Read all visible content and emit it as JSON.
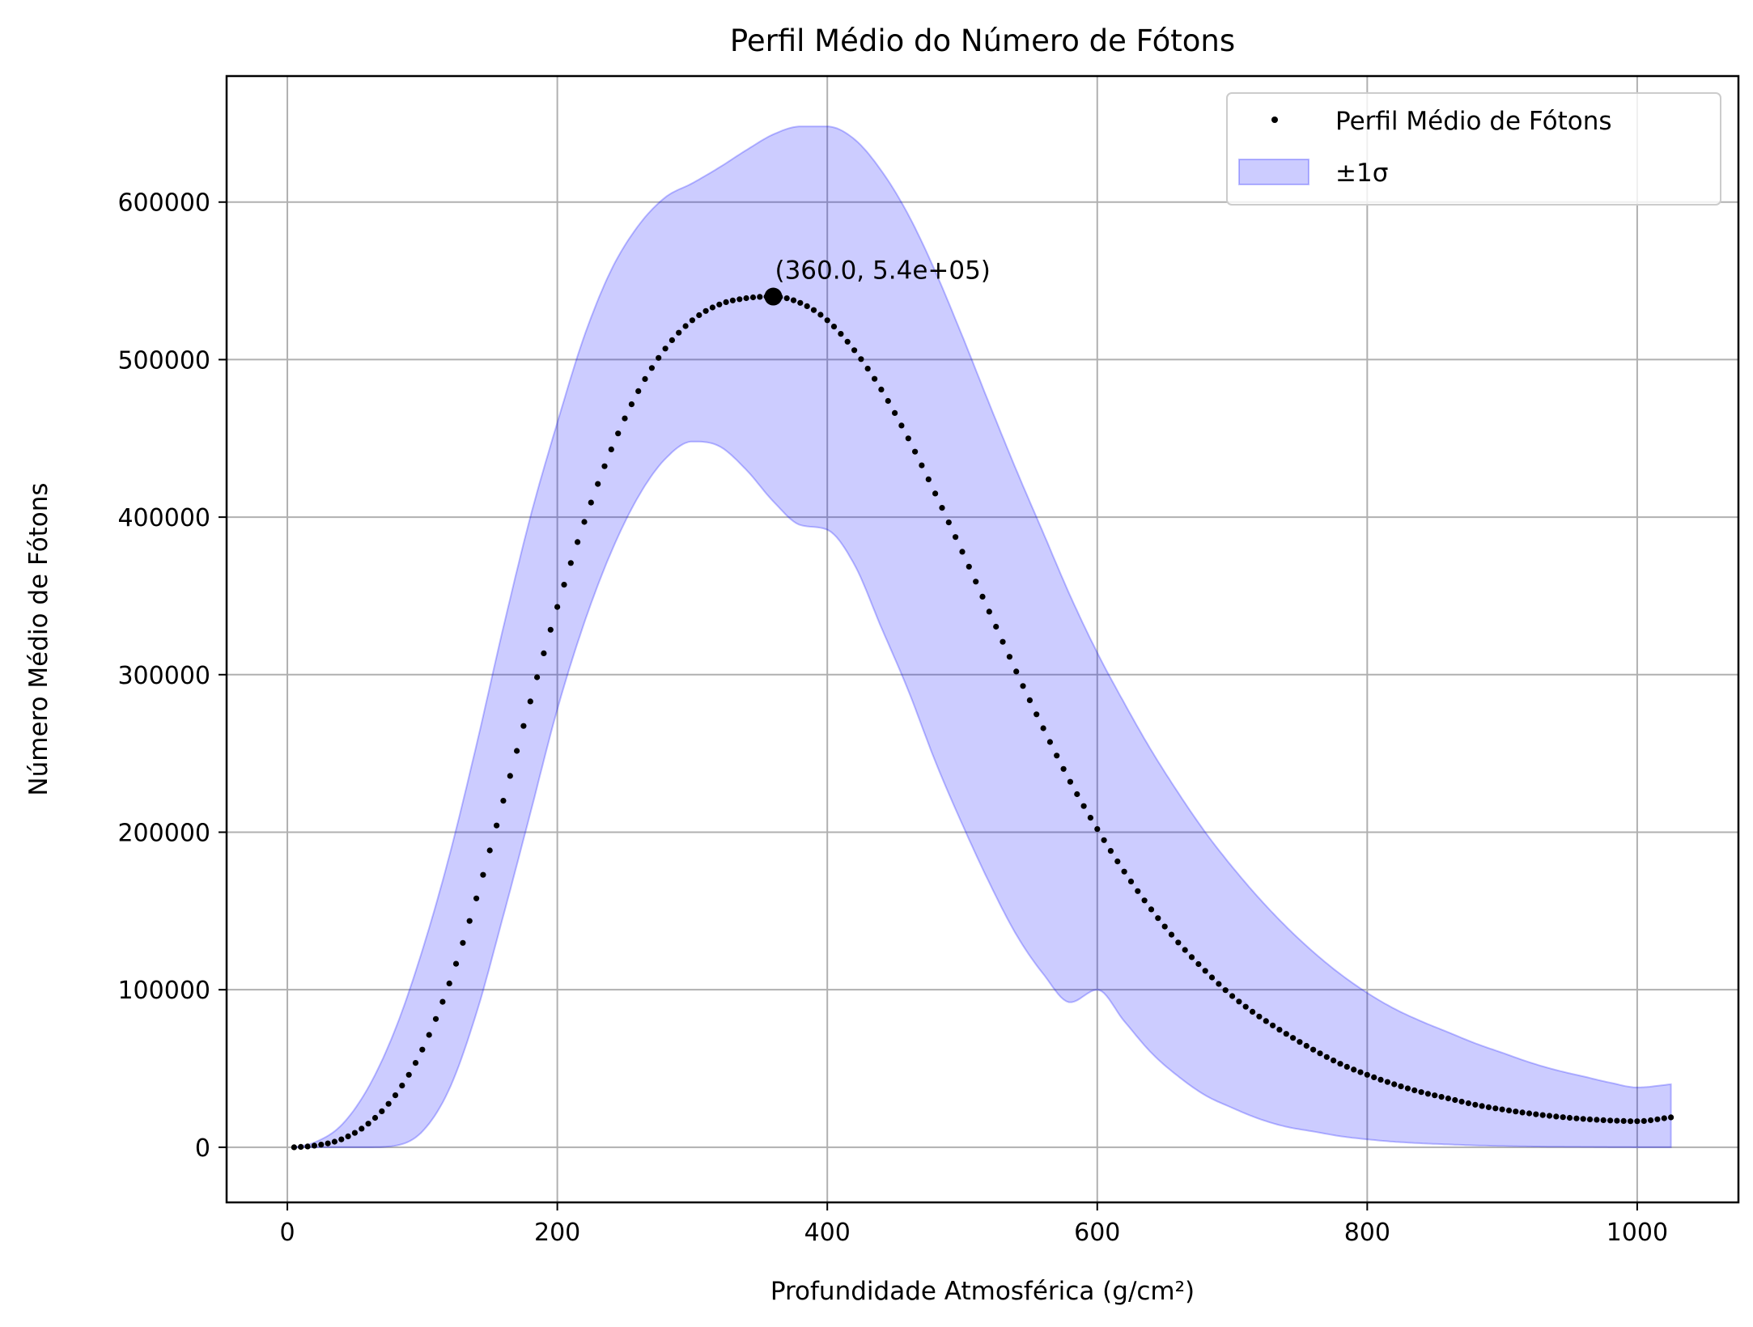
{
  "chart_data": {
    "type": "scatter",
    "title": "Perfil Médio do Número de Fótons",
    "xlabel": "Profundidade Atmosférica (g/cm²)",
    "ylabel": "Número Médio de Fótons",
    "xlim": [
      -45,
      1075
    ],
    "ylim": [
      -35000,
      680000
    ],
    "xticks": [
      0,
      200,
      400,
      600,
      800,
      1000
    ],
    "yticks": [
      0,
      100000,
      200000,
      300000,
      400000,
      500000,
      600000
    ],
    "grid": true,
    "legend_position": "top-right",
    "series": [
      {
        "name": "Perfil Médio de Fótons",
        "kind": "points",
        "color": "#000000",
        "x_start": 5,
        "x_end": 1025,
        "x_step": 5,
        "profile": {
          "x": [
            5,
            20,
            40,
            60,
            80,
            100,
            120,
            140,
            160,
            180,
            200,
            220,
            240,
            260,
            280,
            300,
            320,
            340,
            360,
            380,
            400,
            420,
            440,
            460,
            480,
            500,
            520,
            540,
            560,
            580,
            600,
            620,
            640,
            660,
            680,
            700,
            720,
            740,
            760,
            780,
            800,
            820,
            840,
            860,
            880,
            900,
            920,
            940,
            960,
            980,
            1000,
            1025
          ],
          "y": [
            0,
            1000,
            5000,
            15000,
            33000,
            62000,
            104000,
            158000,
            220000,
            283000,
            343000,
            397000,
            443000,
            480000,
            507000,
            525000,
            535000,
            539000,
            540000,
            536000,
            525000,
            506000,
            481000,
            450000,
            415000,
            378000,
            340000,
            302000,
            266000,
            232000,
            202000,
            175000,
            151000,
            130000,
            112000,
            96000,
            83000,
            72000,
            62000,
            53000,
            46000,
            40000,
            35000,
            31000,
            27000,
            24000,
            21500,
            19500,
            18000,
            17000,
            16500,
            19000
          ]
        }
      },
      {
        "name": "±1σ",
        "kind": "band",
        "fill": "#0000ff",
        "fill_opacity": 0.2,
        "x": [
          5,
          20,
          40,
          60,
          80,
          100,
          120,
          140,
          160,
          180,
          200,
          220,
          240,
          260,
          280,
          300,
          320,
          340,
          360,
          380,
          400,
          420,
          440,
          460,
          480,
          500,
          520,
          540,
          560,
          580,
          600,
          620,
          640,
          660,
          680,
          700,
          720,
          740,
          760,
          780,
          800,
          820,
          840,
          860,
          880,
          900,
          920,
          940,
          960,
          980,
          1000,
          1025
        ],
        "lower": [
          0,
          0,
          0,
          0,
          1000,
          10000,
          37000,
          85000,
          147000,
          212000,
          278000,
          333000,
          378000,
          413000,
          437000,
          448000,
          445000,
          430000,
          410000,
          395000,
          392000,
          370000,
          330000,
          290000,
          245000,
          205000,
          168000,
          135000,
          110000,
          92000,
          100000,
          80000,
          60000,
          45000,
          33000,
          25000,
          18000,
          13000,
          10000,
          7000,
          5000,
          3500,
          2500,
          1800,
          1200,
          800,
          500,
          300,
          200,
          100,
          0,
          0
        ],
        "upper": [
          0,
          3000,
          14000,
          38000,
          75000,
          125000,
          185000,
          255000,
          330000,
          400000,
          460000,
          515000,
          557000,
          585000,
          603000,
          612000,
          622000,
          633000,
          643000,
          648000,
          648000,
          640000,
          620000,
          592000,
          556000,
          515000,
          472000,
          430000,
          390000,
          350000,
          314000,
          282000,
          252000,
          225000,
          200000,
          178000,
          158000,
          140000,
          124000,
          110000,
          98000,
          88000,
          80000,
          73000,
          66000,
          60000,
          54000,
          49000,
          45000,
          41000,
          38000,
          40000
        ]
      }
    ],
    "annotations": [
      {
        "x": 360.0,
        "y": 540000,
        "text": "(360.0, 5.4e+05)",
        "marker": "circle"
      }
    ]
  }
}
